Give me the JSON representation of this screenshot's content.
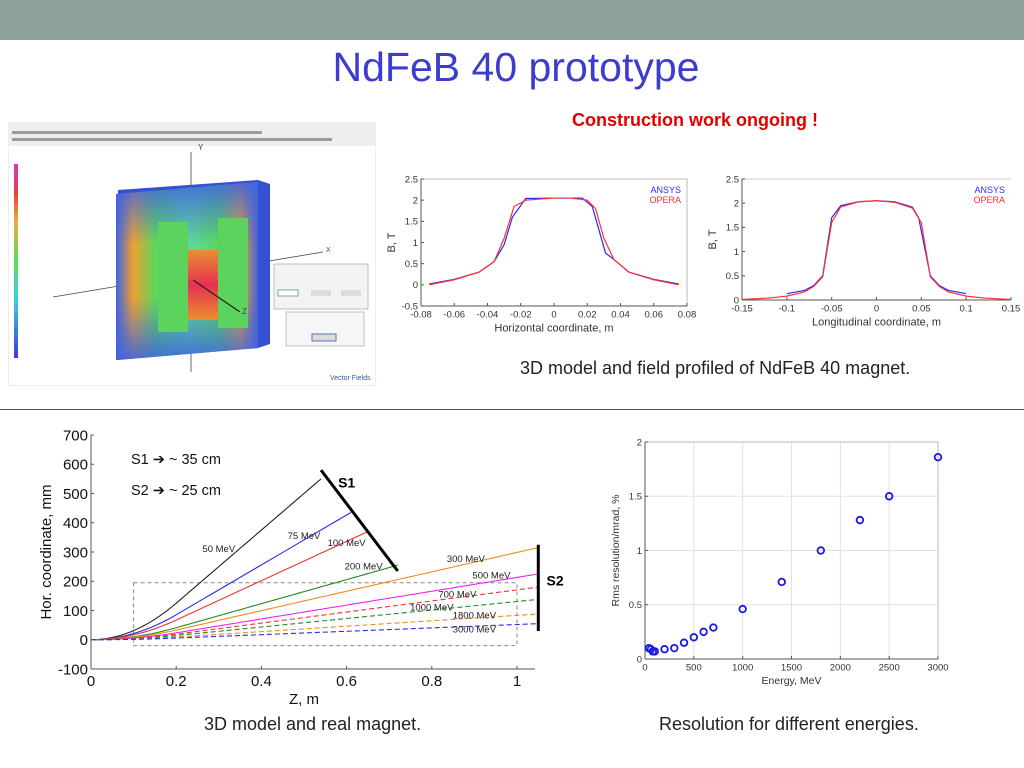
{
  "slide": {
    "title": "NdFeB 40 prototype",
    "notice": "Construction work ongoing !",
    "caption_top": "3D model and field profiled of NdFeB 40 magnet.",
    "caption_bottom_left": "3D model and real magnet.",
    "caption_bottom_right": "Resolution for different energies.",
    "colors": {
      "topbar": "#8fa39b",
      "title": "#3c3ccf",
      "notice": "#e00000"
    }
  },
  "simulation_screenshot": {
    "axis_labels": [
      "Y",
      "X",
      "Z"
    ],
    "logo": "Vector Fields"
  },
  "chart_data": [
    {
      "type": "line",
      "xlabel": "Horizontal coordinate, m",
      "ylabel": "B, T",
      "xlim": [
        -0.08,
        0.08
      ],
      "ylim": [
        -0.5,
        2.5
      ],
      "xticks": [
        -0.08,
        -0.06,
        -0.04,
        -0.02,
        0,
        0.02,
        0.04,
        0.06,
        0.08
      ],
      "xtick_labels": [
        "-0.08",
        "-0.06",
        "-0.04",
        "-0.02",
        "0",
        "0.02",
        "0.04",
        "0.06",
        "0.08"
      ],
      "yticks": [
        -0.5,
        0,
        0.5,
        1,
        1.5,
        2,
        2.5
      ],
      "ytick_labels": [
        "-0.5",
        "0",
        "0.5",
        "1",
        "1.5",
        "2",
        "2.5"
      ],
      "grid": false,
      "legend": "top-right",
      "series": [
        {
          "name": "ANSYS",
          "color": "#2b2bff",
          "points": [
            [
              -0.075,
              0.02
            ],
            [
              -0.06,
              0.13
            ],
            [
              -0.045,
              0.3
            ],
            [
              -0.036,
              0.55
            ],
            [
              -0.03,
              0.95
            ],
            [
              -0.025,
              1.6
            ],
            [
              -0.017,
              2.04
            ],
            [
              0,
              2.05
            ],
            [
              0.017,
              2.05
            ],
            [
              0.023,
              1.85
            ],
            [
              0.031,
              0.75
            ],
            [
              0.036,
              0.6
            ],
            [
              0.045,
              0.3
            ],
            [
              0.06,
              0.13
            ],
            [
              0.075,
              0.02
            ]
          ]
        },
        {
          "name": "OPERA",
          "color": "#ff3030",
          "points": [
            [
              -0.075,
              0.0
            ],
            [
              -0.06,
              0.12
            ],
            [
              -0.045,
              0.3
            ],
            [
              -0.036,
              0.55
            ],
            [
              -0.03,
              1.1
            ],
            [
              -0.024,
              1.85
            ],
            [
              -0.017,
              2.0
            ],
            [
              0,
              2.05
            ],
            [
              0.01,
              2.05
            ],
            [
              0.02,
              2.0
            ],
            [
              0.025,
              1.8
            ],
            [
              0.03,
              1.1
            ],
            [
              0.036,
              0.6
            ],
            [
              0.045,
              0.3
            ],
            [
              0.06,
              0.12
            ],
            [
              0.075,
              0.0
            ]
          ]
        }
      ]
    },
    {
      "type": "line",
      "xlabel": "Longitudinal coordinate, m",
      "ylabel": "B, T",
      "xlim": [
        -0.15,
        0.15
      ],
      "ylim": [
        0,
        2.5
      ],
      "xticks": [
        -0.15,
        -0.1,
        -0.05,
        0,
        0.05,
        0.1,
        0.15
      ],
      "xtick_labels": [
        "-0.15",
        "-0.1",
        "-0.05",
        "0",
        "0.05",
        "0.1",
        "0.15"
      ],
      "yticks": [
        0,
        0.5,
        1,
        1.5,
        2,
        2.5
      ],
      "ytick_labels": [
        "0",
        "0.5",
        "1",
        "1.5",
        "2",
        "2.5"
      ],
      "grid": false,
      "legend": "top-right",
      "series": [
        {
          "name": "ANSYS",
          "color": "#2b2bff",
          "points": [
            [
              -0.1,
              0.13
            ],
            [
              -0.08,
              0.2
            ],
            [
              -0.07,
              0.3
            ],
            [
              -0.06,
              0.5
            ],
            [
              -0.05,
              1.7
            ],
            [
              -0.04,
              1.95
            ],
            [
              -0.02,
              2.03
            ],
            [
              0,
              2.05
            ],
            [
              0.02,
              2.03
            ],
            [
              0.04,
              1.92
            ],
            [
              0.047,
              1.7
            ],
            [
              0.06,
              0.5
            ],
            [
              0.07,
              0.3
            ],
            [
              0.08,
              0.2
            ],
            [
              0.1,
              0.13
            ]
          ]
        },
        {
          "name": "OPERA",
          "color": "#ff3030",
          "points": [
            [
              -0.15,
              0.01
            ],
            [
              -0.12,
              0.04
            ],
            [
              -0.1,
              0.08
            ],
            [
              -0.08,
              0.17
            ],
            [
              -0.07,
              0.28
            ],
            [
              -0.06,
              0.48
            ],
            [
              -0.05,
              1.6
            ],
            [
              -0.04,
              1.92
            ],
            [
              -0.02,
              2.03
            ],
            [
              0,
              2.05
            ],
            [
              0.02,
              2.02
            ],
            [
              0.04,
              1.9
            ],
            [
              0.05,
              1.6
            ],
            [
              0.06,
              0.48
            ],
            [
              0.07,
              0.28
            ],
            [
              0.08,
              0.17
            ],
            [
              0.1,
              0.08
            ],
            [
              0.12,
              0.04
            ],
            [
              0.15,
              0.01
            ]
          ]
        }
      ]
    },
    {
      "type": "line",
      "xlabel": "Z, m",
      "ylabel": "Hor. coordinate, mm",
      "xlim": [
        0,
        1.1
      ],
      "ylim": [
        -100,
        700
      ],
      "xticks": [
        0,
        0.2,
        0.4,
        0.6,
        0.8,
        1
      ],
      "xtick_labels": [
        "0",
        "0.2",
        "0.4",
        "0.6",
        "0.8",
        "1"
      ],
      "yticks": [
        -100,
        0,
        100,
        200,
        300,
        400,
        500,
        600,
        700
      ],
      "ytick_labels": [
        "-100",
        "0",
        "100",
        "200",
        "300",
        "400",
        "500",
        "600",
        "700"
      ],
      "grid": false,
      "annotations": [
        "S1 ➔  ~ 35 cm",
        "S2 ➔  ~ 25 cm"
      ],
      "detectors": [
        {
          "label": "S1",
          "from": [
            0.54,
            580
          ],
          "to": [
            0.72,
            235
          ]
        },
        {
          "label": "S2",
          "from": [
            1.05,
            30
          ],
          "to": [
            1.05,
            325
          ]
        }
      ],
      "acceptance_box": {
        "z": [
          0.1,
          1.0
        ],
        "y": [
          -20,
          195
        ]
      },
      "series": [
        {
          "name": "50 MeV",
          "color": "#222222",
          "dashed": false,
          "end": [
            0.54,
            550
          ],
          "label_at": [
            0.3,
            300
          ]
        },
        {
          "name": "75 MeV",
          "color": "#2a2aee",
          "dashed": false,
          "end": [
            0.61,
            435
          ],
          "label_at": [
            0.5,
            345
          ]
        },
        {
          "name": "100 MeV",
          "color": "#ee3333",
          "dashed": false,
          "end": [
            0.65,
            370
          ],
          "label_at": [
            0.6,
            320
          ]
        },
        {
          "name": "200 MeV",
          "color": "#228b22",
          "dashed": false,
          "end": [
            0.72,
            255
          ],
          "label_at": [
            0.64,
            240
          ]
        },
        {
          "name": "300 MeV",
          "color": "#ee8c1a",
          "dashed": false,
          "end": [
            1.05,
            315
          ],
          "label_at": [
            0.88,
            265
          ]
        },
        {
          "name": "500 MeV",
          "color": "#ee22ee",
          "dashed": false,
          "end": [
            1.05,
            225
          ],
          "label_at": [
            0.94,
            210
          ]
        },
        {
          "name": "700 MeV",
          "color": "#ee3333",
          "dashed": true,
          "end": [
            1.05,
            180
          ],
          "label_at": [
            0.86,
            145
          ]
        },
        {
          "name": "1000 MeV",
          "color": "#228b22",
          "dashed": true,
          "end": [
            1.05,
            138
          ],
          "label_at": [
            0.8,
            100
          ]
        },
        {
          "name": "1800 MeV",
          "color": "#ee8c1a",
          "dashed": true,
          "end": [
            1.05,
            88
          ],
          "label_at": [
            0.9,
            72
          ]
        },
        {
          "name": "3000 MeV",
          "color": "#2a2aee",
          "dashed": true,
          "end": [
            1.05,
            55
          ],
          "label_at": [
            0.9,
            25
          ]
        }
      ]
    },
    {
      "type": "scatter",
      "xlabel": "Energy, MeV",
      "ylabel": "Rms resolution/mrad, %",
      "xlim": [
        0,
        3000
      ],
      "ylim": [
        0,
        2
      ],
      "xticks": [
        0,
        500,
        1000,
        1500,
        2000,
        2500,
        3000
      ],
      "xtick_labels": [
        "0",
        "500",
        "1000",
        "1500",
        "2000",
        "2500",
        "3000"
      ],
      "yticks": [
        0,
        0.5,
        1,
        1.5,
        2
      ],
      "ytick_labels": [
        "0",
        "0.5",
        "1",
        "1.5",
        "2"
      ],
      "grid": true,
      "marker_color": "#1a1ae0",
      "points": [
        [
          40,
          0.1
        ],
        [
          60,
          0.09
        ],
        [
          80,
          0.07
        ],
        [
          100,
          0.07
        ],
        [
          200,
          0.09
        ],
        [
          300,
          0.1
        ],
        [
          400,
          0.15
        ],
        [
          500,
          0.2
        ],
        [
          600,
          0.25
        ],
        [
          700,
          0.29
        ],
        [
          1000,
          0.46
        ],
        [
          1400,
          0.71
        ],
        [
          1800,
          1.0
        ],
        [
          2200,
          1.28
        ],
        [
          2500,
          1.5
        ],
        [
          3000,
          1.86
        ]
      ]
    }
  ]
}
